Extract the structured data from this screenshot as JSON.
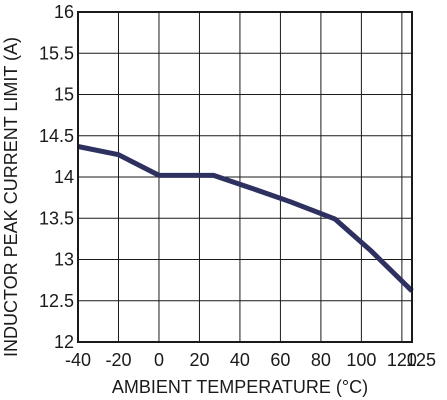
{
  "chart_data": {
    "type": "line",
    "title": "",
    "xlabel": "AMBIENT TEMPERATURE (°C)",
    "ylabel": "INDUCTOR PEAK CURRENT LIMIT (A)",
    "xlim": [
      -40,
      125
    ],
    "ylim": [
      12,
      16
    ],
    "x_ticks": [
      -40,
      -20,
      0,
      20,
      40,
      60,
      80,
      100,
      120,
      125
    ],
    "x_tick_labels": [
      "-40",
      "-20",
      "0",
      "20",
      "40",
      "60",
      "80",
      "100",
      "120",
      "125"
    ],
    "y_ticks": [
      12,
      12.5,
      13,
      13.5,
      14,
      14.5,
      15,
      15.5,
      16
    ],
    "y_tick_labels": [
      "12",
      "12.5",
      "13",
      "13.5",
      "14",
      "14.5",
      "15",
      "15.5",
      "16"
    ],
    "grid": true,
    "series": [
      {
        "color": "#2e3160",
        "x": [
          -40,
          -20,
          0,
          27,
          45,
          65,
          87,
          105,
          125
        ],
        "y": [
          14.37,
          14.27,
          14.02,
          14.02,
          13.87,
          13.7,
          13.49,
          13.1,
          12.62
        ]
      }
    ]
  }
}
